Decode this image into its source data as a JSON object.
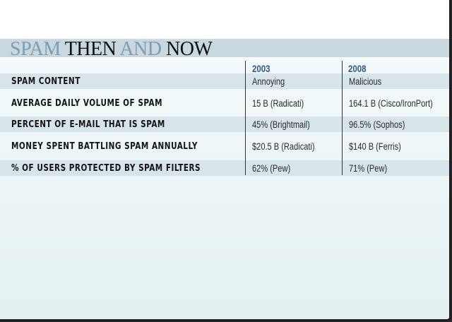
{
  "title": {
    "word1": "SPAM",
    "word2": "THEN",
    "word3": "AND",
    "word4": "NOW"
  },
  "columns": {
    "year_1": "2003",
    "year_2": "2008"
  },
  "rows": [
    {
      "label": "SPAM CONTENT",
      "v2003": "Annoying",
      "v2008": "Malicious"
    },
    {
      "label": "AVERAGE DAILY VOLUME OF SPAM",
      "v2003": "15 B (Radicati)",
      "v2008": "164.1 B (Cisco/IronPort)"
    },
    {
      "label": "PERCENT OF E-MAIL THAT IS SPAM",
      "v2003": "45% (Brightmail)",
      "v2008": "96.5% (Sophos)"
    },
    {
      "label": "MONEY SPENT BATTLING SPAM ANNUALLY",
      "v2003": "$20.5 B (Radicati)",
      "v2008": "$140 B (Ferris)"
    },
    {
      "label": "%  OF USERS PROTECTED BY SPAM FILTERS",
      "v2003": "62% (Pew)",
      "v2008": "71% (Pew)"
    }
  ],
  "colors": {
    "title_light": "#7e9db5",
    "title_dark": "#111111",
    "year_header": "#2e5a86",
    "row_shade": "#d7e4ea",
    "title_band": "#c9d7df"
  }
}
